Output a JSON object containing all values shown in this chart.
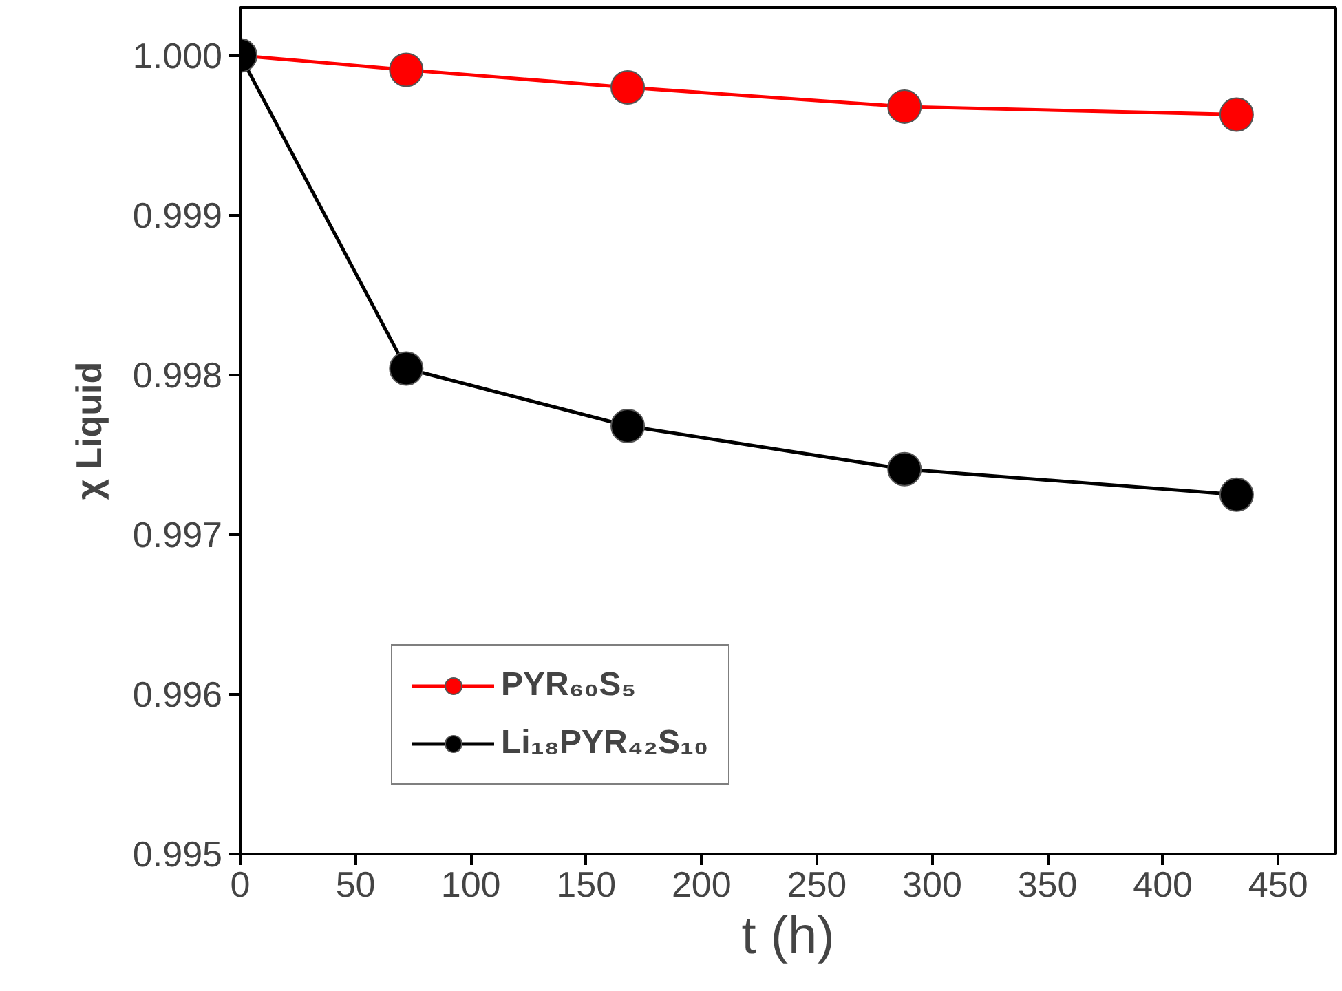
{
  "chart_data": {
    "type": "line",
    "xlabel": "t (h)",
    "ylabel": "χ Liquid",
    "x": [
      0,
      72,
      168,
      288,
      432
    ],
    "series": [
      {
        "name": "PYR₆₀S₅",
        "color": "#ff0000",
        "values": [
          1.0,
          0.99991,
          0.9998,
          0.99968,
          0.99963
        ]
      },
      {
        "name": "Li₁₈PYR₄₂S₁₀",
        "color": "#000000",
        "values": [
          1.0,
          0.99804,
          0.99768,
          0.99741,
          0.99725
        ]
      }
    ],
    "xlim": [
      0,
      475
    ],
    "ylim": [
      0.995,
      1.0003
    ],
    "xticks": [
      0,
      50,
      100,
      150,
      200,
      250,
      300,
      350,
      400,
      450
    ],
    "yticks": [
      {
        "value": 0.995,
        "label": "0.995"
      },
      {
        "value": 0.996,
        "label": "0.996"
      },
      {
        "value": 0.997,
        "label": "0.997"
      },
      {
        "value": 0.998,
        "label": "0.998"
      },
      {
        "value": 0.999,
        "label": "0.999"
      },
      {
        "value": 1.0,
        "label": "1.000"
      }
    ],
    "grid": false,
    "legend": "bottom left",
    "marker": "circle",
    "line_style": "solid"
  }
}
